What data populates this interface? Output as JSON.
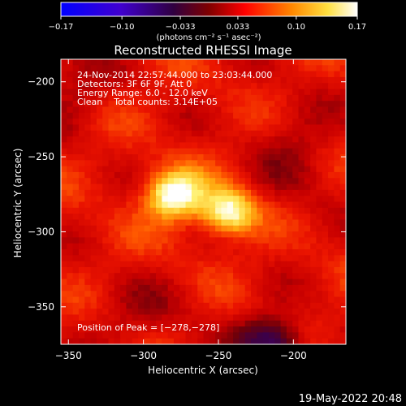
{
  "chart_data": {
    "type": "heatmap",
    "title": "Reconstructed RHESSI Image",
    "xlabel": "Heliocentric X (arcsec)",
    "ylabel": "Heliocentric Y (arcsec)",
    "xlim": [
      -355,
      -165
    ],
    "ylim": [
      -375,
      -185
    ],
    "x_ticks": [
      -350,
      -300,
      -250,
      -200
    ],
    "y_ticks": [
      -350,
      -300,
      -250,
      -200
    ],
    "x_tick_labels": [
      "−350",
      "−300",
      "−250",
      "−200"
    ],
    "y_tick_labels": [
      "−350",
      "−300",
      "−250",
      "−200"
    ],
    "colorbar": {
      "min": -0.17,
      "max": 0.17,
      "ticks": [
        -0.17,
        -0.1,
        -0.033,
        0.033,
        0.1,
        0.17
      ],
      "tick_labels": [
        "−0.17",
        "−0.10",
        "−0.033",
        "0.033",
        "0.10",
        "0.17"
      ],
      "units": "(photons cm⁻² s⁻¹ asec⁻²)",
      "colormap": [
        "#0000ff",
        "#6a00c0",
        "#3a0040",
        "#ff0000",
        "#ff8800",
        "#ffff60",
        "#ffffff"
      ]
    },
    "sources": [
      {
        "x": -280,
        "y": -275,
        "peak": 0.17
      },
      {
        "x": -243,
        "y": -287,
        "peak": 0.16
      }
    ],
    "background_level": 0.055,
    "dim_region": {
      "x": -215,
      "y": -375,
      "value": -0.06
    },
    "info": [
      "24-Nov-2014 22:57:44.000 to 23:03:44.000",
      "Detectors: 3F 6F 9F, Att 0",
      "Energy Range: 6.0 - 12.0 keV",
      "Clean    Total counts: 3.14E+05"
    ],
    "peak_position": "Position of Peak = [−278,−278]",
    "timestamp": "19-May-2022 20:48"
  }
}
